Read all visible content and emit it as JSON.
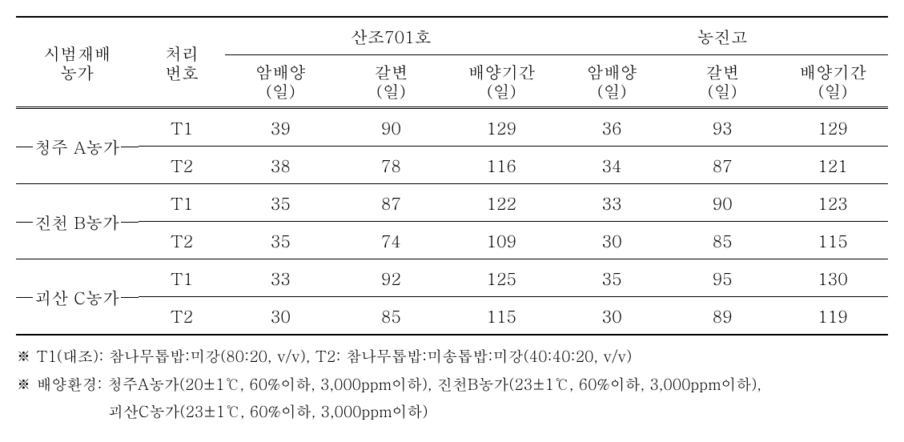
{
  "headers": {
    "farm": "시범재배\n농가",
    "treatment": "처리\n번호",
    "variety1": "산조701호",
    "variety2": "농진고",
    "sub_dark": "암배양",
    "sub_brown": "갈변",
    "sub_period": "배양기간",
    "unit": "(일)"
  },
  "rows": [
    {
      "farm": "청주 A농가",
      "r1": {
        "t": "T1",
        "v": [
          "39",
          "90",
          "129",
          "36",
          "93",
          "129"
        ]
      },
      "r2": {
        "t": "T2",
        "v": [
          "38",
          "78",
          "116",
          "34",
          "87",
          "121"
        ]
      }
    },
    {
      "farm": "진천 B농가",
      "r1": {
        "t": "T1",
        "v": [
          "35",
          "87",
          "122",
          "33",
          "90",
          "123"
        ]
      },
      "r2": {
        "t": "T2",
        "v": [
          "35",
          "74",
          "109",
          "30",
          "85",
          "115"
        ]
      }
    },
    {
      "farm": "괴산 C농가",
      "r1": {
        "t": "T1",
        "v": [
          "33",
          "92",
          "125",
          "35",
          "95",
          "130"
        ]
      },
      "r2": {
        "t": "T2",
        "v": [
          "30",
          "85",
          "115",
          "30",
          "89",
          "119"
        ]
      }
    }
  ],
  "footnotes": {
    "l1": "※ T1(대조): 참나무톱밥:미강(80:20, v/v), T2: 참나무톱밥:미송톱밥:미강(40:40:20, v/v)",
    "l2": "※ 배양환경: 청주A농가(20±1℃, 60%이하, 3,000ppm이하), 진천B농가(23±1℃, 60%이하, 3,000ppm이하),",
    "l3": "괴산C농가(23±1℃, 60%이하, 3,000ppm이하)"
  }
}
